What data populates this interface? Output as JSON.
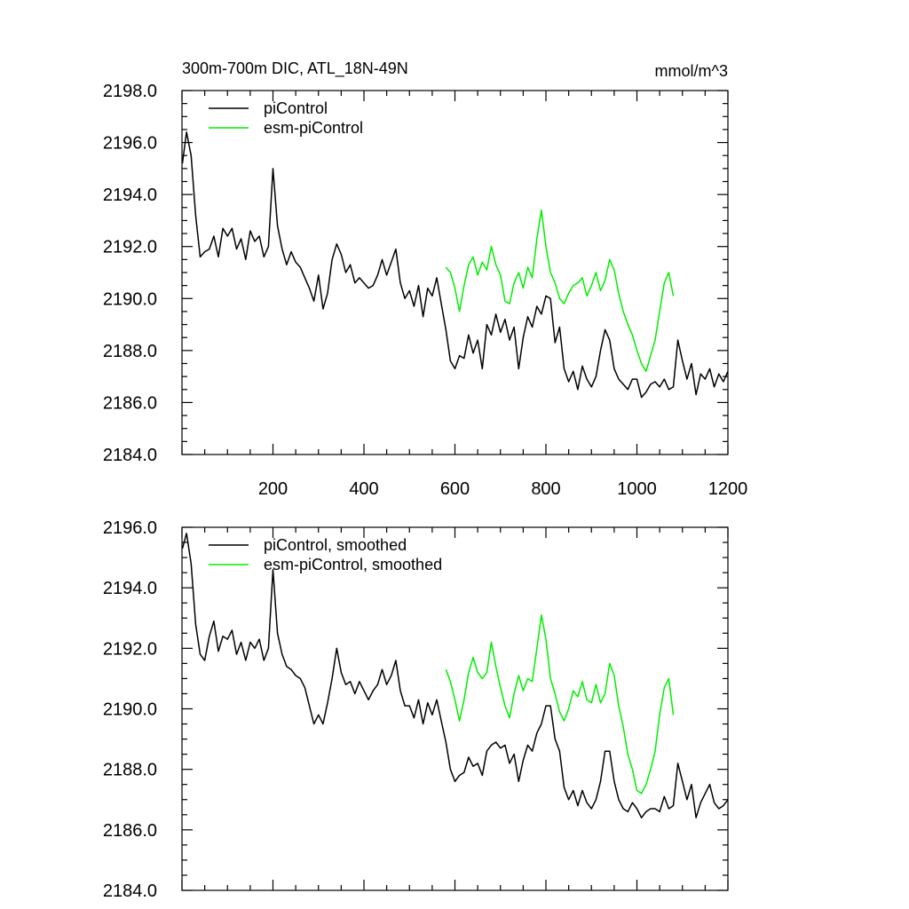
{
  "header": {
    "title": "300m-700m DIC, ATL_18N-49N",
    "units": "mmol/m^3"
  },
  "colors": {
    "picontrol": "#000000",
    "esm_picontrol": "#00ee00",
    "axis": "#000000"
  },
  "chart_data": [
    {
      "type": "line",
      "title": "300m-700m DIC, ATL_18N-49N",
      "units_label": "mmol/m^3",
      "xlim": [
        0,
        1200
      ],
      "ylim": [
        2184,
        2198
      ],
      "x_ticks": [
        200,
        400,
        600,
        800,
        1000,
        1200
      ],
      "y_ticks": [
        2184,
        2186,
        2188,
        2190,
        2192,
        2194,
        2196,
        2198
      ],
      "y_tick_labels": [
        "2184.0",
        "2186.0",
        "2188.0",
        "2190.0",
        "2192.0",
        "2194.0",
        "2196.0",
        "2198.0"
      ],
      "x_tick_labels": [
        "200",
        "400",
        "600",
        "800",
        "1000",
        "1200"
      ],
      "legend_position": "top-left",
      "series": [
        {
          "name": "piControl",
          "x": [
            1,
            10,
            20,
            30,
            40,
            50,
            60,
            70,
            80,
            90,
            100,
            110,
            120,
            130,
            140,
            150,
            160,
            170,
            180,
            190,
            200,
            210,
            220,
            230,
            240,
            250,
            260,
            270,
            280,
            290,
            300,
            310,
            320,
            330,
            340,
            350,
            360,
            370,
            380,
            390,
            400,
            410,
            420,
            430,
            440,
            450,
            460,
            470,
            480,
            490,
            500,
            510,
            520,
            530,
            540,
            550,
            560,
            570,
            580,
            590,
            600,
            610,
            620,
            630,
            640,
            650,
            660,
            670,
            680,
            690,
            700,
            710,
            720,
            730,
            740,
            750,
            760,
            770,
            780,
            790,
            800,
            810,
            820,
            830,
            840,
            850,
            860,
            870,
            880,
            890,
            900,
            910,
            920,
            930,
            940,
            950,
            960,
            970,
            980,
            990,
            1000,
            1010,
            1020,
            1030,
            1040,
            1050,
            1060,
            1070,
            1080,
            1090,
            1100,
            1110,
            1120,
            1130,
            1140,
            1150,
            1160,
            1170,
            1180,
            1190,
            1200
          ],
          "values": [
            2195.2,
            2196.4,
            2195.5,
            2193.2,
            2191.6,
            2191.8,
            2191.9,
            2192.4,
            2191.6,
            2192.7,
            2192.4,
            2192.7,
            2191.9,
            2192.3,
            2191.5,
            2192.6,
            2192.2,
            2192.4,
            2191.6,
            2192.0,
            2195.0,
            2192.8,
            2191.9,
            2191.3,
            2191.8,
            2191.4,
            2191.2,
            2190.8,
            2190.4,
            2189.9,
            2190.9,
            2189.6,
            2190.2,
            2191.5,
            2192.1,
            2191.7,
            2191.0,
            2191.3,
            2190.6,
            2190.8,
            2190.6,
            2190.4,
            2190.5,
            2190.9,
            2191.5,
            2190.9,
            2191.4,
            2191.9,
            2190.6,
            2190.0,
            2190.3,
            2189.7,
            2190.5,
            2189.3,
            2190.4,
            2190.1,
            2190.8,
            2189.8,
            2188.8,
            2187.6,
            2187.3,
            2187.8,
            2187.7,
            2188.6,
            2187.9,
            2188.4,
            2187.3,
            2189.0,
            2188.6,
            2189.4,
            2188.7,
            2189.2,
            2188.4,
            2188.9,
            2187.3,
            2188.5,
            2189.3,
            2188.9,
            2189.7,
            2189.4,
            2190.1,
            2190.0,
            2188.3,
            2188.9,
            2187.3,
            2186.8,
            2187.2,
            2186.5,
            2187.4,
            2186.9,
            2186.6,
            2187.0,
            2188.0,
            2188.8,
            2188.4,
            2187.3,
            2186.9,
            2186.7,
            2186.5,
            2186.9,
            2186.9,
            2186.2,
            2186.4,
            2186.7,
            2186.8,
            2186.6,
            2186.9,
            2186.5,
            2186.6,
            2188.4,
            2187.6,
            2186.9,
            2187.5,
            2186.3,
            2187.1,
            2186.9,
            2187.3,
            2186.6,
            2187.1,
            2186.8,
            2187.2
          ]
        },
        {
          "name": "esm-piControl",
          "x": [
            580,
            590,
            600,
            610,
            620,
            630,
            640,
            650,
            660,
            670,
            680,
            690,
            700,
            710,
            720,
            730,
            740,
            750,
            760,
            770,
            780,
            790,
            800,
            810,
            820,
            830,
            840,
            850,
            860,
            870,
            880,
            890,
            900,
            910,
            920,
            930,
            940,
            950,
            960,
            970,
            980,
            990,
            1000,
            1010,
            1020,
            1030,
            1040,
            1050,
            1060,
            1070,
            1080
          ],
          "values": [
            2191.2,
            2191.0,
            2190.4,
            2189.5,
            2190.5,
            2191.3,
            2191.6,
            2190.9,
            2191.4,
            2191.1,
            2192.0,
            2191.3,
            2190.9,
            2189.9,
            2189.8,
            2190.6,
            2191.0,
            2190.4,
            2191.2,
            2190.8,
            2192.3,
            2193.4,
            2192.0,
            2191.0,
            2190.6,
            2190.0,
            2189.8,
            2190.2,
            2190.5,
            2190.6,
            2190.8,
            2190.1,
            2190.5,
            2191.0,
            2190.3,
            2190.7,
            2191.5,
            2191.1,
            2190.2,
            2189.5,
            2189.0,
            2188.6,
            2188.0,
            2187.5,
            2187.2,
            2187.8,
            2188.4,
            2189.5,
            2190.6,
            2191.0,
            2190.1
          ]
        }
      ]
    },
    {
      "type": "line",
      "xlim": [
        0,
        1200
      ],
      "ylim": [
        2184,
        2196
      ],
      "x_ticks": [
        200,
        400,
        600,
        800,
        1000,
        1200
      ],
      "y_ticks": [
        2184,
        2186,
        2188,
        2190,
        2192,
        2194,
        2196
      ],
      "y_tick_labels": [
        "2184.0",
        "2186.0",
        "2188.0",
        "2190.0",
        "2192.0",
        "2194.0",
        "2196.0"
      ],
      "legend_position": "top-left",
      "series": [
        {
          "name": "piControl, smoothed",
          "x": [
            1,
            10,
            20,
            30,
            40,
            50,
            60,
            70,
            80,
            90,
            100,
            110,
            120,
            130,
            140,
            150,
            160,
            170,
            180,
            190,
            200,
            210,
            220,
            230,
            240,
            250,
            260,
            270,
            280,
            290,
            300,
            310,
            320,
            330,
            340,
            350,
            360,
            370,
            380,
            390,
            400,
            410,
            420,
            430,
            440,
            450,
            460,
            470,
            480,
            490,
            500,
            510,
            520,
            530,
            540,
            550,
            560,
            570,
            580,
            590,
            600,
            610,
            620,
            630,
            640,
            650,
            660,
            670,
            680,
            690,
            700,
            710,
            720,
            730,
            740,
            750,
            760,
            770,
            780,
            790,
            800,
            810,
            820,
            830,
            840,
            850,
            860,
            870,
            880,
            890,
            900,
            910,
            920,
            930,
            940,
            950,
            960,
            970,
            980,
            990,
            1000,
            1010,
            1020,
            1030,
            1040,
            1050,
            1060,
            1070,
            1080,
            1090,
            1100,
            1110,
            1120,
            1130,
            1140,
            1150,
            1160,
            1170,
            1180,
            1190,
            1200
          ],
          "values": [
            2195.3,
            2195.8,
            2194.8,
            2192.8,
            2191.8,
            2191.6,
            2192.4,
            2192.9,
            2191.9,
            2192.4,
            2192.3,
            2192.6,
            2191.8,
            2192.2,
            2191.6,
            2192.2,
            2192.0,
            2192.3,
            2191.6,
            2192.0,
            2194.6,
            2192.5,
            2191.8,
            2191.4,
            2191.3,
            2191.1,
            2191.0,
            2190.7,
            2190.1,
            2189.5,
            2189.8,
            2189.5,
            2190.2,
            2191.0,
            2192.0,
            2191.2,
            2190.8,
            2190.9,
            2190.5,
            2190.9,
            2190.6,
            2190.3,
            2190.6,
            2190.8,
            2191.3,
            2190.8,
            2191.1,
            2191.6,
            2190.6,
            2190.1,
            2190.1,
            2189.7,
            2190.3,
            2189.5,
            2190.2,
            2189.8,
            2190.3,
            2189.6,
            2188.9,
            2188.0,
            2187.6,
            2187.8,
            2187.9,
            2188.4,
            2188.1,
            2188.2,
            2187.8,
            2188.6,
            2188.8,
            2188.9,
            2188.7,
            2188.8,
            2188.2,
            2188.5,
            2187.6,
            2188.3,
            2188.8,
            2188.6,
            2189.2,
            2189.5,
            2190.1,
            2190.1,
            2189.0,
            2188.6,
            2187.4,
            2187.0,
            2187.3,
            2186.8,
            2187.3,
            2186.9,
            2186.7,
            2187.0,
            2187.6,
            2188.6,
            2188.6,
            2187.6,
            2187.0,
            2186.7,
            2186.6,
            2186.9,
            2186.7,
            2186.4,
            2186.6,
            2186.7,
            2186.7,
            2186.6,
            2187.1,
            2186.7,
            2186.8,
            2188.2,
            2187.6,
            2187.0,
            2187.5,
            2186.4,
            2186.9,
            2187.2,
            2187.5,
            2186.9,
            2186.7,
            2186.8,
            2187.0
          ]
        },
        {
          "name": "esm-piControl, smoothed",
          "x": [
            580,
            590,
            600,
            610,
            620,
            630,
            640,
            650,
            660,
            670,
            680,
            690,
            700,
            710,
            720,
            730,
            740,
            750,
            760,
            770,
            780,
            790,
            800,
            810,
            820,
            830,
            840,
            850,
            860,
            870,
            880,
            890,
            900,
            910,
            920,
            930,
            940,
            950,
            960,
            970,
            980,
            990,
            1000,
            1010,
            1020,
            1030,
            1040,
            1050,
            1060,
            1070,
            1080
          ],
          "values": [
            2191.3,
            2190.9,
            2190.3,
            2189.6,
            2190.3,
            2191.2,
            2191.7,
            2191.2,
            2191.0,
            2191.2,
            2192.2,
            2191.4,
            2190.7,
            2190.1,
            2189.7,
            2190.5,
            2191.1,
            2190.6,
            2191.0,
            2190.9,
            2192.0,
            2193.1,
            2192.3,
            2191.0,
            2190.5,
            2189.9,
            2189.6,
            2190.0,
            2190.6,
            2190.4,
            2190.9,
            2190.3,
            2190.2,
            2190.8,
            2190.2,
            2190.5,
            2191.5,
            2191.1,
            2190.1,
            2189.4,
            2188.5,
            2188.0,
            2187.3,
            2187.2,
            2187.5,
            2188.0,
            2188.6,
            2189.8,
            2190.7,
            2191.0,
            2189.8
          ]
        }
      ]
    }
  ]
}
